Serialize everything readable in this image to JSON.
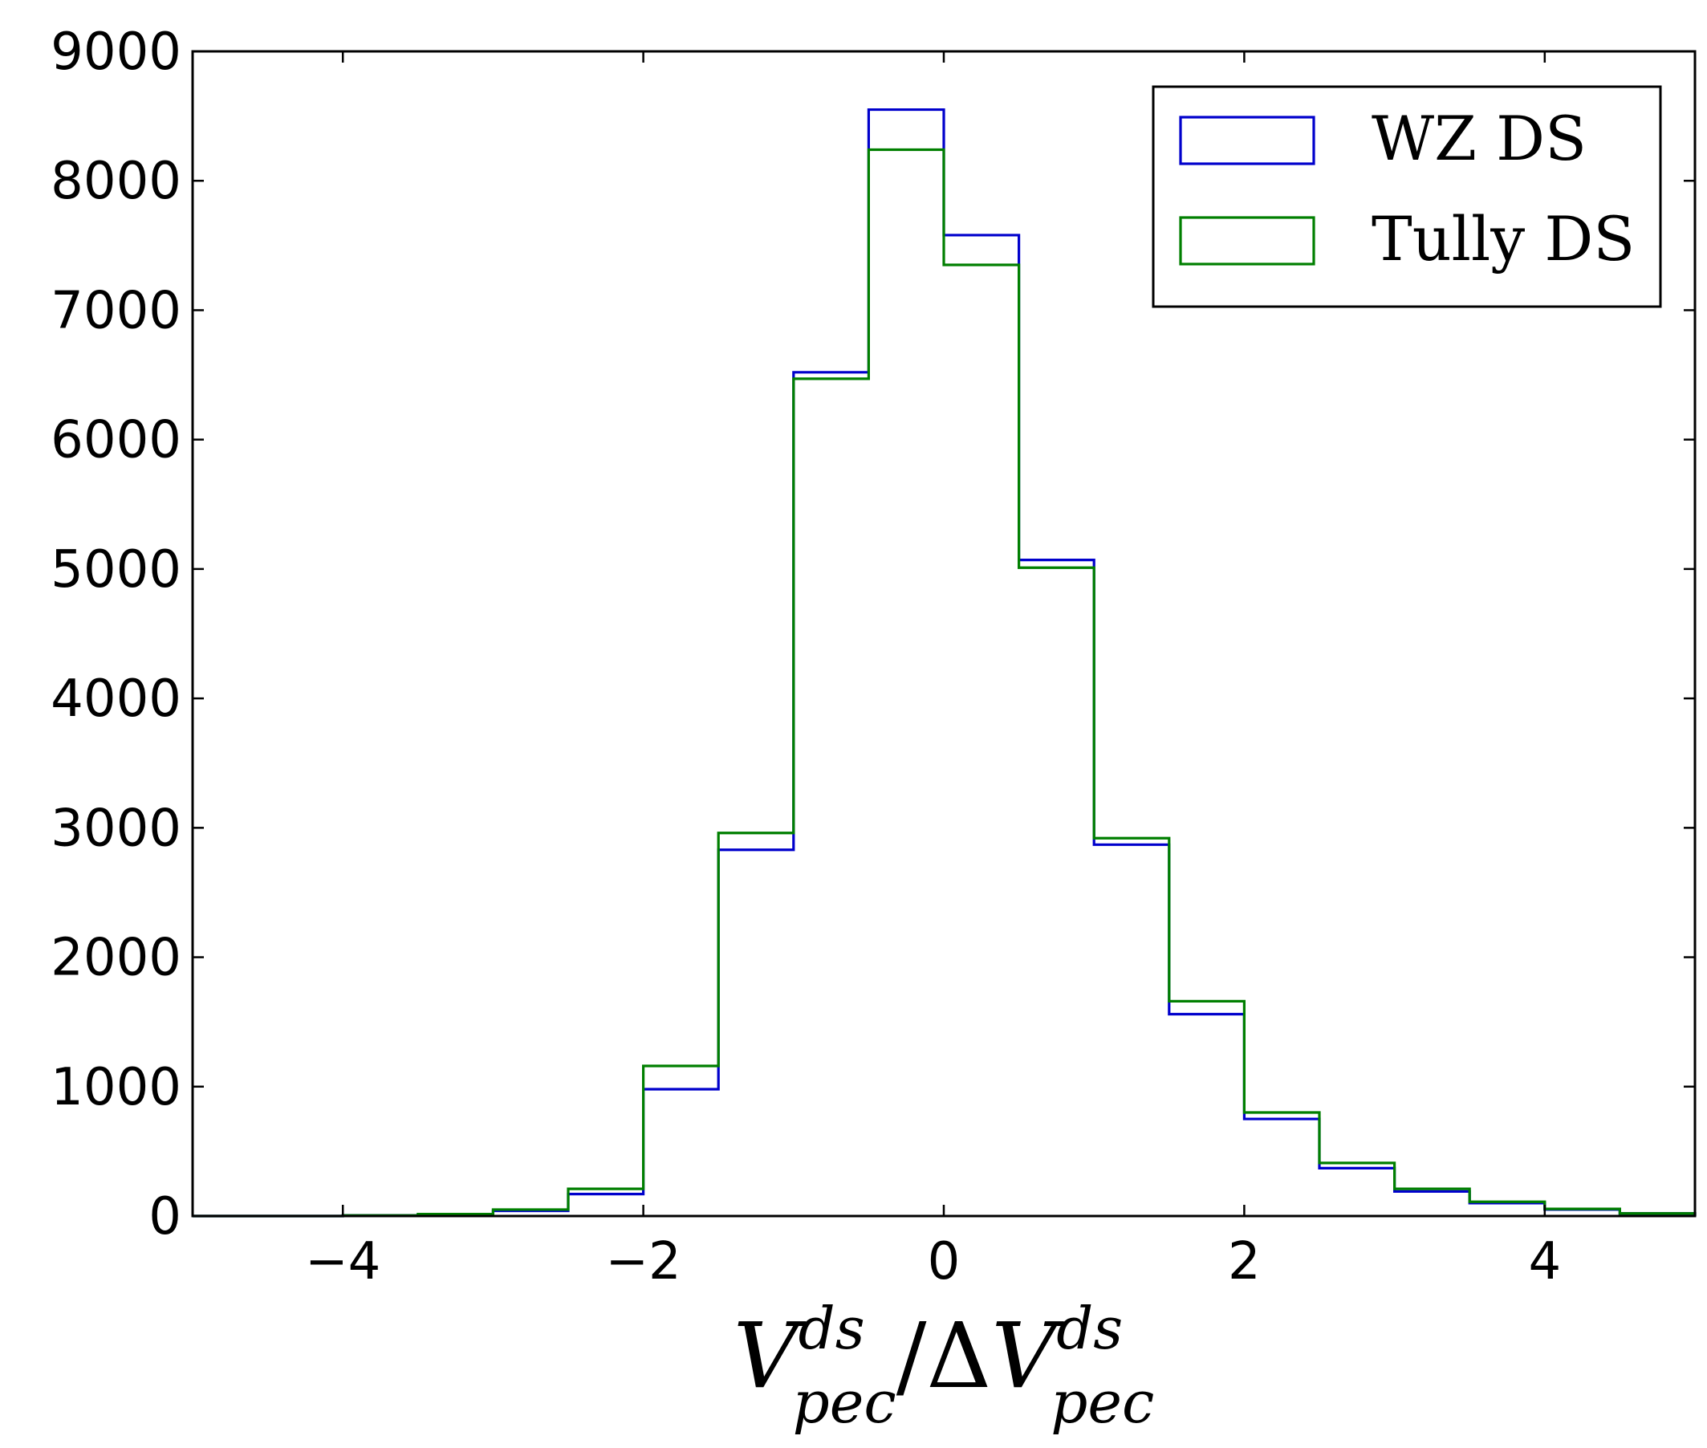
{
  "chart_data": {
    "type": "histogram",
    "xlim": [
      -5,
      5
    ],
    "ylim": [
      0,
      9000
    ],
    "bin_edges": [
      -5.0,
      -4.5,
      -4.0,
      -3.5,
      -3.0,
      -2.5,
      -2.0,
      -1.5,
      -1.0,
      -0.5,
      0.0,
      0.5,
      1.0,
      1.5,
      2.0,
      2.5,
      3.0,
      3.5,
      4.0,
      4.5,
      5.0
    ],
    "x_ticks": [
      -4,
      -2,
      0,
      2,
      4
    ],
    "x_tick_labels": [
      "−4",
      "−2",
      "0",
      "2",
      "4"
    ],
    "y_ticks": [
      0,
      1000,
      2000,
      3000,
      4000,
      5000,
      6000,
      7000,
      8000,
      9000
    ],
    "y_tick_labels": [
      "0",
      "1000",
      "2000",
      "3000",
      "4000",
      "5000",
      "6000",
      "7000",
      "8000",
      "9000"
    ],
    "xlabel": {
      "base1": "V",
      "sup1": "ds",
      "sub1": "pec",
      "slash": "/",
      "delta": "Δ",
      "base2": "V",
      "sup2": "ds",
      "sub2": "pec"
    },
    "legend_position": "upper right",
    "series": [
      {
        "name": "WZ DS",
        "color": "#0000cc",
        "values": [
          0,
          0,
          5,
          10,
          40,
          170,
          980,
          2830,
          6520,
          8550,
          7580,
          5070,
          2870,
          1560,
          750,
          370,
          190,
          100,
          50,
          20
        ]
      },
      {
        "name": "Tully DS",
        "color": "#007f00",
        "values": [
          0,
          0,
          5,
          15,
          50,
          210,
          1160,
          2960,
          6470,
          8240,
          7350,
          5010,
          2920,
          1660,
          800,
          410,
          210,
          110,
          55,
          20
        ]
      }
    ]
  }
}
